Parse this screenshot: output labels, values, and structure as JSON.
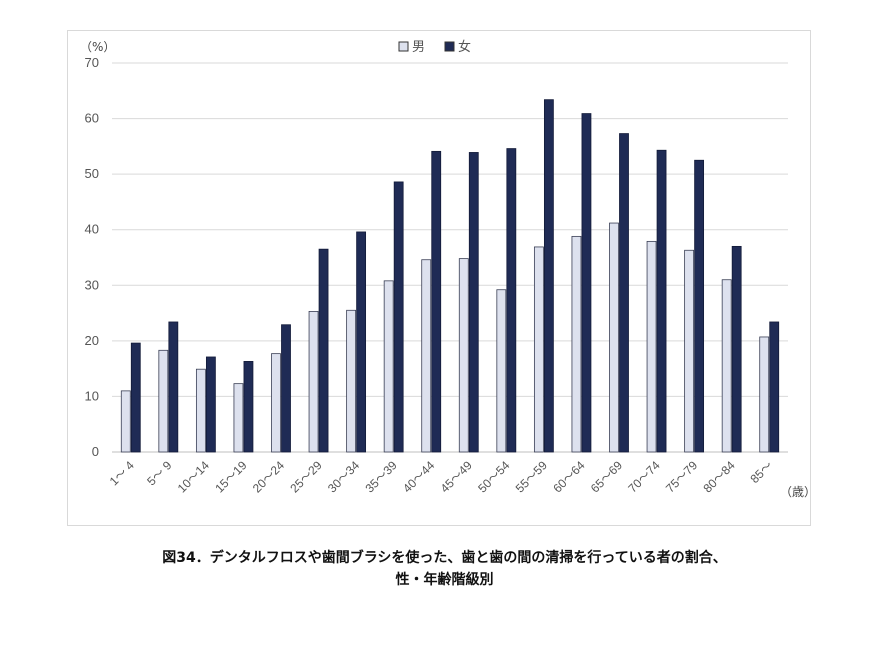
{
  "chart_data": {
    "type": "bar",
    "y_unit": "（%）",
    "x_unit": "（歳）",
    "ylim": [
      0,
      70
    ],
    "yticks": [
      0,
      10,
      20,
      30,
      40,
      50,
      60,
      70
    ],
    "grid": true,
    "legend_position": "top-center",
    "categories": [
      "1～ 4",
      "5～ 9",
      "10～14",
      "15～19",
      "20～24",
      "25～29",
      "30～34",
      "35～39",
      "40～44",
      "45～49",
      "50～54",
      "55～59",
      "60～64",
      "65～69",
      "70～74",
      "75～79",
      "80～84",
      "85～"
    ],
    "series": [
      {
        "name": "男",
        "color": "#dde1ee",
        "values": [
          11,
          18.3,
          14.9,
          12.3,
          17.7,
          25.3,
          25.5,
          30.8,
          34.6,
          34.8,
          29.2,
          36.9,
          38.8,
          41.2,
          37.9,
          36.3,
          31.0,
          20.7
        ]
      },
      {
        "name": "女",
        "color": "#1f2b55",
        "values": [
          19.6,
          23.4,
          17.1,
          16.3,
          22.9,
          36.5,
          39.6,
          48.6,
          54.1,
          53.9,
          54.6,
          63.4,
          60.9,
          57.3,
          54.3,
          52.5,
          37.0,
          23.4
        ]
      }
    ]
  },
  "caption": {
    "line1": "図34．デンタルフロスや歯間ブラシを使った、歯と歯の間の清掃を行っている者の割合、",
    "line2": "性・年齢階級別"
  }
}
